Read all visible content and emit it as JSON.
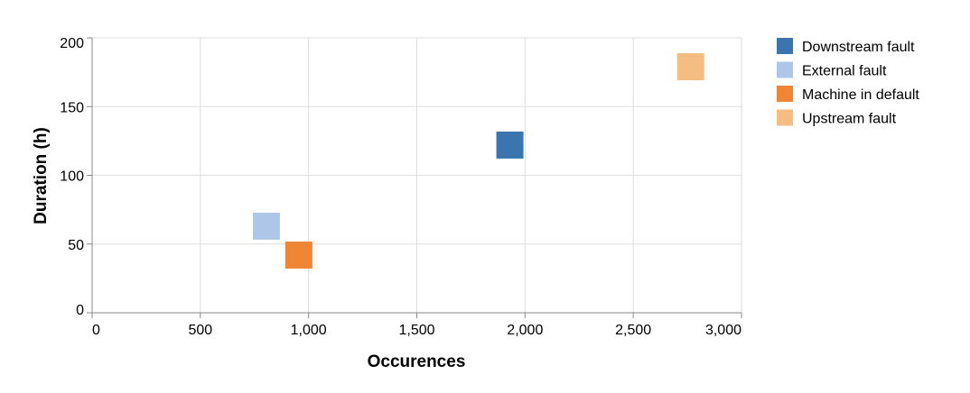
{
  "chart_data": {
    "type": "scatter",
    "title": "",
    "xlabel": "Occurences",
    "ylabel": "Duration (h)",
    "xlim": [
      0,
      3000
    ],
    "ylim": [
      0,
      200
    ],
    "x_ticks": [
      0,
      500,
      1000,
      1500,
      2000,
      2500,
      3000
    ],
    "x_tick_labels": [
      "0",
      "500",
      "1,000",
      "1,500",
      "2,000",
      "2,500",
      "3,000"
    ],
    "y_ticks": [
      0,
      50,
      100,
      150,
      200
    ],
    "y_tick_labels": [
      "0",
      "50",
      "100",
      "150",
      "200"
    ],
    "grid": true,
    "legend_position": "right",
    "marker": "square",
    "series": [
      {
        "name": "Downstream fault",
        "color": "#3b75af",
        "points": [
          {
            "x": 1930,
            "y": 122
          }
        ]
      },
      {
        "name": "External fault",
        "color": "#aec7e8",
        "points": [
          {
            "x": 805,
            "y": 63
          }
        ]
      },
      {
        "name": "Machine in default",
        "color": "#ef8636",
        "points": [
          {
            "x": 955,
            "y": 42
          }
        ]
      },
      {
        "name": "Upstream fault",
        "color": "#f5bd82",
        "points": [
          {
            "x": 2765,
            "y": 179
          }
        ]
      }
    ]
  }
}
